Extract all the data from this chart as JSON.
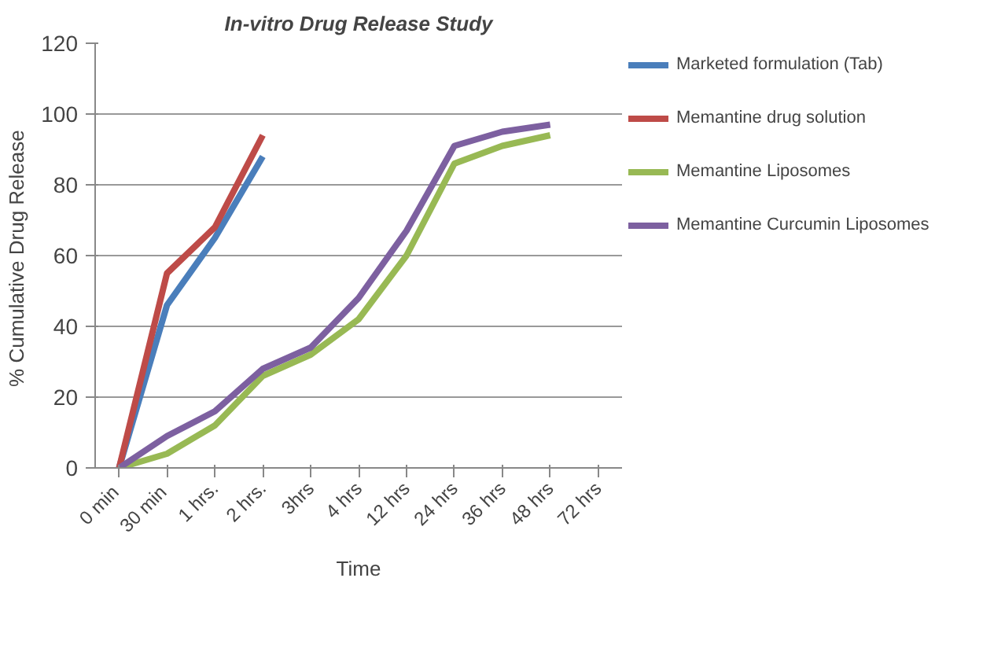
{
  "chart_data": {
    "type": "line",
    "title": "In-vitro Drug Release Study",
    "xlabel": "Time",
    "ylabel": "% Cumulative  Drug Release",
    "categories": [
      "0  min",
      "30  min",
      "1 hrs.",
      "2 hrs.",
      "3hrs",
      "4 hrs",
      "12 hrs",
      "24 hrs",
      "36 hrs",
      "48 hrs",
      "72 hrs"
    ],
    "series": [
      {
        "name": "Marketed formulation (Tab)",
        "color": "#4a7ebb",
        "values": [
          0,
          46,
          65,
          88,
          null,
          null,
          null,
          null,
          null,
          null,
          null
        ]
      },
      {
        "name": "Memantine drug solution",
        "color": "#be4b48",
        "values": [
          0,
          55,
          68,
          94,
          null,
          null,
          null,
          null,
          null,
          null,
          null
        ]
      },
      {
        "name": "Memantine Liposomes",
        "color": "#98b954",
        "values": [
          0,
          4,
          12,
          26,
          32,
          42,
          60,
          86,
          91,
          94,
          null
        ]
      },
      {
        "name": "Memantine Curcumin Liposomes",
        "color": "#7d60a0",
        "values": [
          0,
          9,
          16,
          28,
          34,
          48,
          67,
          91,
          95,
          97,
          null
        ]
      }
    ],
    "ylim": [
      0,
      120
    ],
    "yticks": [
      0,
      20,
      40,
      60,
      80,
      100,
      120
    ],
    "grid": "y",
    "legend": "right",
    "marker": "none",
    "line_style": "solid"
  }
}
